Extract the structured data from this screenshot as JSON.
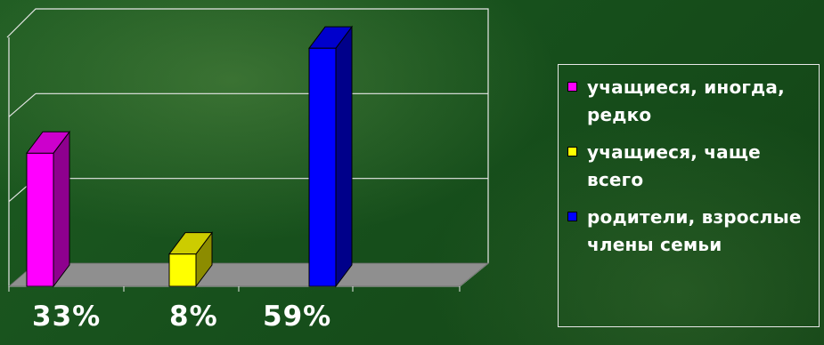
{
  "chart_data": {
    "type": "bar",
    "categories": [
      "учащиеся, иногда, редко",
      "учащиеся, чаще всего",
      "родители, взрослые члены семьи"
    ],
    "values": [
      33,
      8,
      59
    ],
    "data_labels": [
      "33%",
      "8%",
      "59%"
    ],
    "ylim": [
      0,
      63
    ],
    "grid": true,
    "legend_position": "right",
    "colors": [
      "#ff00ff",
      "#ffff00",
      "#0000ff"
    ],
    "side_colors": [
      "#8e008e",
      "#8c8c00",
      "#00008a"
    ],
    "top_colors": [
      "#cc00cc",
      "#cccc00",
      "#0000cc"
    ]
  },
  "legend": {
    "items": [
      {
        "label": "учащиеся, иногда, редко",
        "color": "#ff00ff"
      },
      {
        "label": "учащиеся, чаще всего",
        "color": "#ffff00"
      },
      {
        "label": "родители, взрослые члены семьи",
        "color": "#0000ff"
      }
    ]
  }
}
